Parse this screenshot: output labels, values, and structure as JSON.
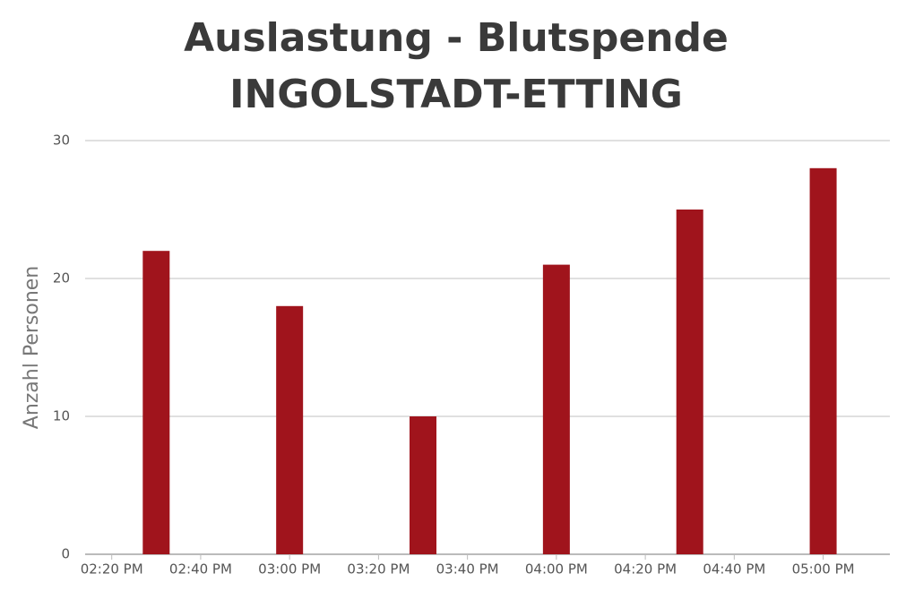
{
  "chart_data": {
    "type": "bar",
    "title": [
      "Auslastung - Blutspende",
      "INGOLSTADT-ETTING"
    ],
    "y_label": "Anzahl Personen",
    "x": [
      "02:30 PM",
      "03:00 PM",
      "03:30 PM",
      "04:00 PM",
      "04:30 PM",
      "05:00 PM"
    ],
    "values": [
      22,
      18,
      10,
      21,
      25,
      28
    ],
    "color": "#a0141c",
    "xlim": [
      "02:12 PM",
      "05:15 PM"
    ],
    "xticks": [
      "02:20 PM",
      "02:40 PM",
      "03:00 PM",
      "03:20 PM",
      "03:40 PM",
      "04:00 PM",
      "04:20 PM",
      "04:40 PM",
      "05:00 PM"
    ],
    "ylim": [
      0,
      30
    ],
    "yticks": [
      0,
      10,
      20,
      30
    ],
    "grid": true
  }
}
